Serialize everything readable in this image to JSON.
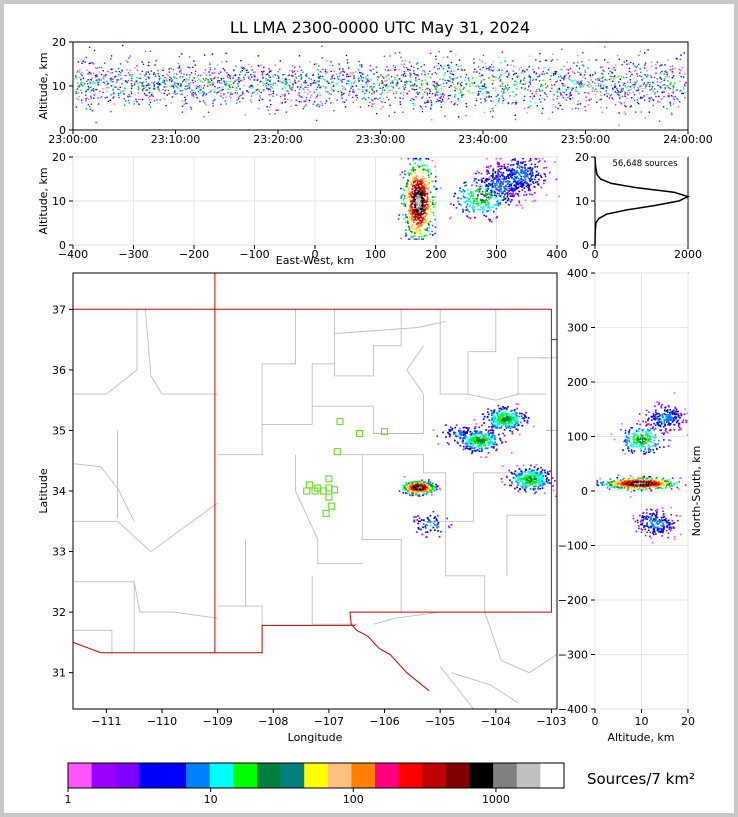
{
  "title": "LL LMA 2300-0000 UTC May 31, 2024",
  "chart_data": [
    {
      "id": "time-altitude",
      "type": "heatmap",
      "ylabel": "Altitude, km",
      "x_ticks": [
        "23:00:00",
        "23:10:00",
        "23:20:00",
        "23:30:00",
        "23:40:00",
        "23:50:00",
        "24:00:00"
      ],
      "ylim": [
        0,
        20
      ],
      "y_ticks": [
        0,
        10,
        20
      ],
      "x_range": [
        "23:00:00",
        "24:00:00"
      ]
    },
    {
      "id": "ew-altitude",
      "type": "heatmap",
      "xlabel": "East-West, km",
      "ylabel": "Altitude, km",
      "xlim": [
        -400,
        400
      ],
      "x_ticks": [
        -400,
        -300,
        -200,
        -100,
        0,
        100,
        200,
        300,
        400
      ],
      "ylim": [
        0,
        20
      ],
      "y_ticks": [
        0,
        10,
        20
      ],
      "clusters": [
        {
          "x": 170,
          "z": 10,
          "intensity": "max"
        },
        {
          "x": 275,
          "z": 11,
          "intensity": "medium"
        },
        {
          "x": 310,
          "z": 14,
          "intensity": "low"
        },
        {
          "x": 340,
          "z": 16,
          "intensity": "low"
        }
      ]
    },
    {
      "id": "altitude-histogram",
      "type": "line",
      "annotation": "56,648 sources",
      "xlim": [
        0,
        2000
      ],
      "x_ticks": [
        0,
        2000
      ],
      "ylim": [
        0,
        20
      ],
      "y_ticks": [
        0,
        10,
        20
      ],
      "x": [
        0,
        5,
        20,
        80,
        250,
        700,
        1300,
        1800,
        2000,
        1700,
        900,
        350,
        120,
        40,
        10,
        0
      ],
      "y": [
        0,
        3,
        5,
        6,
        7,
        8,
        9,
        10,
        11,
        12,
        13,
        14,
        15,
        16,
        18,
        20
      ]
    },
    {
      "id": "plan-view",
      "type": "heatmap",
      "xlabel": "Longitude",
      "ylabel": "Latitude",
      "xlim": [
        -111.6,
        -102.9
      ],
      "x_ticks": [
        -111,
        -110,
        -109,
        -108,
        -107,
        -106,
        -105,
        -104,
        -103
      ],
      "ylim": [
        30.4,
        37.6
      ],
      "y_ticks": [
        31,
        32,
        33,
        34,
        35,
        36,
        37
      ],
      "stations": [
        {
          "lon": -106.8,
          "lat": 35.15
        },
        {
          "lon": -106.45,
          "lat": 34.95
        },
        {
          "lon": -106.0,
          "lat": 34.98
        },
        {
          "lon": -106.85,
          "lat": 34.65
        },
        {
          "lon": -107.0,
          "lat": 34.2
        },
        {
          "lon": -107.35,
          "lat": 34.1
        },
        {
          "lon": -107.25,
          "lat": 34.0
        },
        {
          "lon": -107.4,
          "lat": 34.0
        },
        {
          "lon": -107.1,
          "lat": 34.0
        },
        {
          "lon": -106.9,
          "lat": 34.02
        },
        {
          "lon": -107.0,
          "lat": 34.05
        },
        {
          "lon": -107.0,
          "lat": 33.9
        },
        {
          "lon": -106.95,
          "lat": 33.75
        },
        {
          "lon": -107.05,
          "lat": 33.63
        },
        {
          "lon": -107.2,
          "lat": 34.05
        }
      ],
      "clusters": [
        {
          "lon": -105.4,
          "lat": 34.07,
          "intensity": "max"
        },
        {
          "lon": -104.3,
          "lat": 34.85,
          "intensity": "medium"
        },
        {
          "lon": -103.85,
          "lat": 35.2,
          "intensity": "medium"
        },
        {
          "lon": -103.4,
          "lat": 34.2,
          "intensity": "medium"
        },
        {
          "lon": -104.7,
          "lat": 34.95,
          "intensity": "low"
        },
        {
          "lon": -105.2,
          "lat": 33.45,
          "intensity": "low"
        }
      ]
    },
    {
      "id": "altitude-ns",
      "type": "heatmap",
      "xlabel": "Altitude, km",
      "ylabel": "North-South, km",
      "xlim": [
        0,
        20
      ],
      "x_ticks": [
        0,
        10,
        20
      ],
      "ylim": [
        -400,
        400
      ],
      "y_ticks": [
        -400,
        -300,
        -200,
        -100,
        0,
        100,
        200,
        300,
        400
      ],
      "clusters": [
        {
          "z": 9.5,
          "y": 15,
          "intensity": "max"
        },
        {
          "z": 10,
          "y": 95,
          "intensity": "medium"
        },
        {
          "z": 15,
          "y": 135,
          "intensity": "low"
        },
        {
          "z": 13,
          "y": -58,
          "intensity": "low"
        }
      ]
    },
    {
      "id": "colorbar",
      "type": "bar",
      "unit": "Sources/7 km²",
      "tick_labels": [
        "1",
        "10",
        "100",
        "1000"
      ],
      "log_range": [
        1,
        3000
      ],
      "colors": [
        "#ff55ff",
        "#9b00ff",
        "#7f00ff",
        "#0000ff",
        "#0000ff",
        "#0080ff",
        "#00ffff",
        "#00ff00",
        "#008040",
        "#008080",
        "#ffff00",
        "#ffc080",
        "#ff8000",
        "#ff0080",
        "#ff0000",
        "#c00000",
        "#800000",
        "#000000",
        "#808080",
        "#c0c0c0",
        "#ffffff"
      ]
    }
  ]
}
